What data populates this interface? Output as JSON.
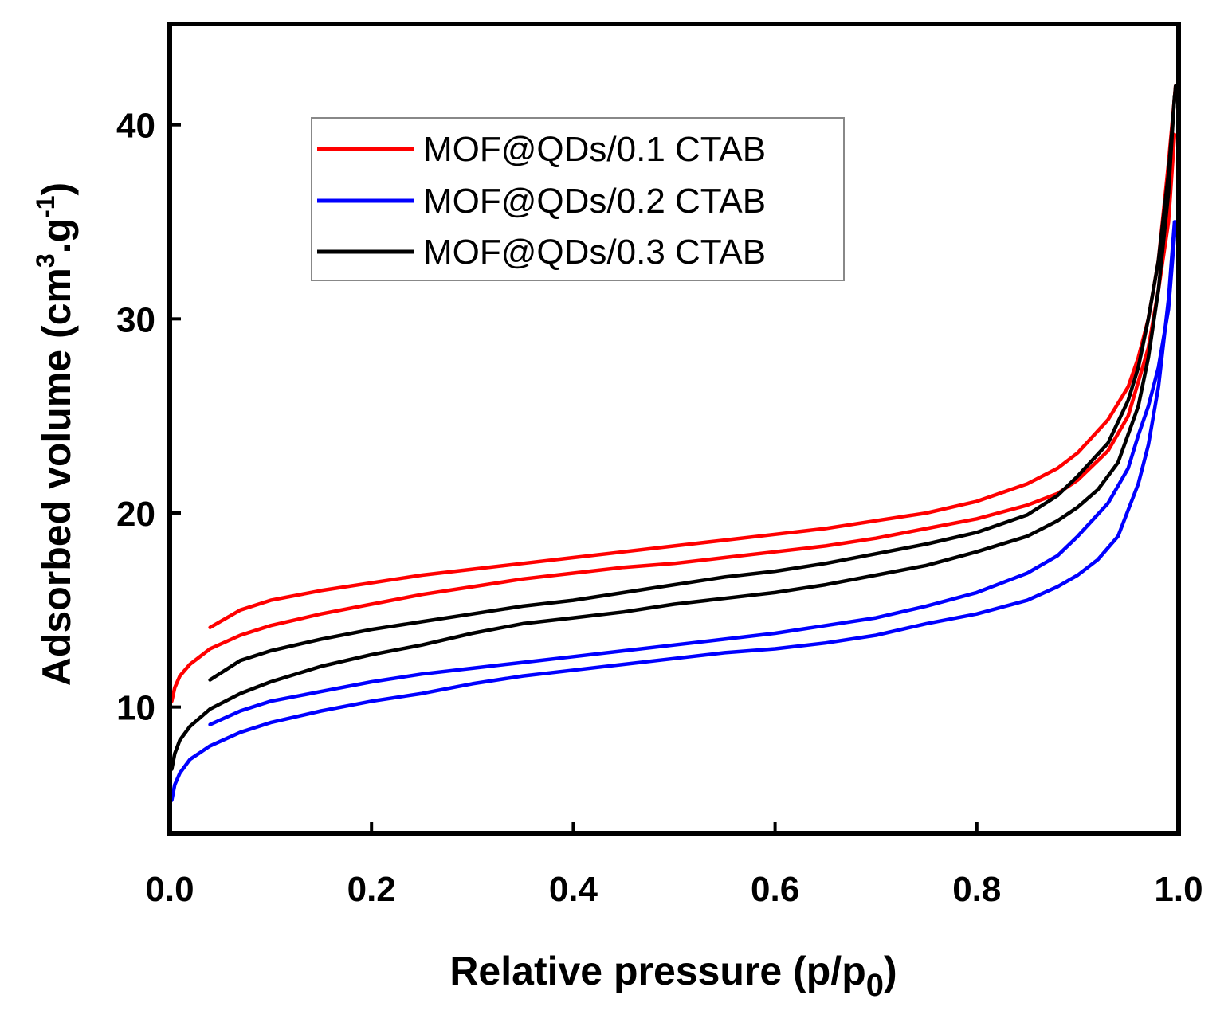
{
  "chart_data": {
    "type": "line",
    "title": "",
    "xlabel": {
      "main": "Relative pressure (p/p",
      "sub": "0",
      "close": ")"
    },
    "ylabel": {
      "main": "Adsorbed volume (cm",
      "sup1": "3",
      "mid": ".g",
      "sup2": "-1",
      "close": ")"
    },
    "xlim": [
      0,
      1.0
    ],
    "ylim": [
      3.5,
      45.2
    ],
    "xticks": [
      0.0,
      0.2,
      0.4,
      0.6,
      0.8,
      1.0
    ],
    "xtick_labels": [
      "0.0",
      "0.2",
      "0.4",
      "0.6",
      "0.8",
      "1.0"
    ],
    "yticks": [
      10,
      20,
      30,
      40
    ],
    "ytick_labels": [
      "10",
      "20",
      "30",
      "40"
    ],
    "grid": false,
    "legend_position": "top-left",
    "series": [
      {
        "name": "MOF@QDs/0.1 CTAB",
        "color": "#ff0000",
        "adsorption": [
          [
            0.002,
            10.3
          ],
          [
            0.005,
            11.0
          ],
          [
            0.01,
            11.6
          ],
          [
            0.02,
            12.2
          ],
          [
            0.04,
            13.0
          ],
          [
            0.07,
            13.7
          ],
          [
            0.1,
            14.2
          ],
          [
            0.15,
            14.8
          ],
          [
            0.2,
            15.3
          ],
          [
            0.25,
            15.8
          ],
          [
            0.3,
            16.2
          ],
          [
            0.35,
            16.6
          ],
          [
            0.4,
            16.9
          ],
          [
            0.45,
            17.2
          ],
          [
            0.5,
            17.4
          ],
          [
            0.55,
            17.7
          ],
          [
            0.6,
            18.0
          ],
          [
            0.65,
            18.3
          ],
          [
            0.7,
            18.7
          ],
          [
            0.75,
            19.2
          ],
          [
            0.8,
            19.7
          ],
          [
            0.85,
            20.4
          ],
          [
            0.88,
            21.0
          ],
          [
            0.9,
            21.7
          ],
          [
            0.93,
            23.2
          ],
          [
            0.95,
            25.0
          ],
          [
            0.97,
            28.5
          ],
          [
            0.98,
            31.5
          ],
          [
            0.99,
            35.0
          ],
          [
            0.996,
            39.5
          ]
        ],
        "desorption": [
          [
            0.997,
            42.0
          ],
          [
            0.99,
            38.0
          ],
          [
            0.98,
            33.0
          ],
          [
            0.97,
            30.0
          ],
          [
            0.96,
            28.0
          ],
          [
            0.95,
            26.5
          ],
          [
            0.93,
            24.8
          ],
          [
            0.9,
            23.1
          ],
          [
            0.88,
            22.3
          ],
          [
            0.85,
            21.5
          ],
          [
            0.8,
            20.6
          ],
          [
            0.75,
            20.0
          ],
          [
            0.7,
            19.6
          ],
          [
            0.65,
            19.2
          ],
          [
            0.6,
            18.9
          ],
          [
            0.55,
            18.6
          ],
          [
            0.5,
            18.3
          ],
          [
            0.45,
            18.0
          ],
          [
            0.4,
            17.7
          ],
          [
            0.35,
            17.4
          ],
          [
            0.3,
            17.1
          ],
          [
            0.25,
            16.8
          ],
          [
            0.2,
            16.4
          ],
          [
            0.15,
            16.0
          ],
          [
            0.1,
            15.5
          ],
          [
            0.07,
            15.0
          ],
          [
            0.04,
            14.1
          ]
        ]
      },
      {
        "name": "MOF@QDs/0.2 CTAB",
        "color": "#0000ff",
        "adsorption": [
          [
            0.002,
            5.2
          ],
          [
            0.005,
            6.0
          ],
          [
            0.01,
            6.6
          ],
          [
            0.02,
            7.3
          ],
          [
            0.04,
            8.0
          ],
          [
            0.07,
            8.7
          ],
          [
            0.1,
            9.2
          ],
          [
            0.15,
            9.8
          ],
          [
            0.2,
            10.3
          ],
          [
            0.25,
            10.7
          ],
          [
            0.3,
            11.2
          ],
          [
            0.35,
            11.6
          ],
          [
            0.4,
            11.9
          ],
          [
            0.45,
            12.2
          ],
          [
            0.5,
            12.5
          ],
          [
            0.55,
            12.8
          ],
          [
            0.6,
            13.0
          ],
          [
            0.65,
            13.3
          ],
          [
            0.7,
            13.7
          ],
          [
            0.75,
            14.3
          ],
          [
            0.8,
            14.8
          ],
          [
            0.85,
            15.5
          ],
          [
            0.88,
            16.2
          ],
          [
            0.9,
            16.8
          ],
          [
            0.92,
            17.6
          ],
          [
            0.94,
            18.8
          ],
          [
            0.96,
            21.5
          ],
          [
            0.97,
            23.5
          ],
          [
            0.98,
            26.5
          ],
          [
            0.99,
            31.0
          ],
          [
            0.996,
            35.0
          ]
        ],
        "desorption": [
          [
            0.997,
            35.0
          ],
          [
            0.99,
            30.5
          ],
          [
            0.98,
            27.5
          ],
          [
            0.97,
            25.5
          ],
          [
            0.96,
            24.0
          ],
          [
            0.95,
            22.3
          ],
          [
            0.93,
            20.5
          ],
          [
            0.9,
            18.8
          ],
          [
            0.88,
            17.8
          ],
          [
            0.85,
            16.9
          ],
          [
            0.8,
            15.9
          ],
          [
            0.75,
            15.2
          ],
          [
            0.7,
            14.6
          ],
          [
            0.65,
            14.2
          ],
          [
            0.6,
            13.8
          ],
          [
            0.55,
            13.5
          ],
          [
            0.5,
            13.2
          ],
          [
            0.45,
            12.9
          ],
          [
            0.4,
            12.6
          ],
          [
            0.35,
            12.3
          ],
          [
            0.3,
            12.0
          ],
          [
            0.25,
            11.7
          ],
          [
            0.2,
            11.3
          ],
          [
            0.15,
            10.8
          ],
          [
            0.1,
            10.3
          ],
          [
            0.07,
            9.8
          ],
          [
            0.04,
            9.1
          ]
        ]
      },
      {
        "name": "MOF@QDs/0.3 CTAB",
        "color": "#000000",
        "adsorption": [
          [
            0.002,
            6.8
          ],
          [
            0.005,
            7.6
          ],
          [
            0.01,
            8.3
          ],
          [
            0.02,
            9.0
          ],
          [
            0.04,
            9.9
          ],
          [
            0.07,
            10.7
          ],
          [
            0.1,
            11.3
          ],
          [
            0.15,
            12.1
          ],
          [
            0.2,
            12.7
          ],
          [
            0.25,
            13.2
          ],
          [
            0.3,
            13.8
          ],
          [
            0.35,
            14.3
          ],
          [
            0.4,
            14.6
          ],
          [
            0.45,
            14.9
          ],
          [
            0.5,
            15.3
          ],
          [
            0.55,
            15.6
          ],
          [
            0.6,
            15.9
          ],
          [
            0.65,
            16.3
          ],
          [
            0.7,
            16.8
          ],
          [
            0.75,
            17.3
          ],
          [
            0.8,
            18.0
          ],
          [
            0.85,
            18.8
          ],
          [
            0.88,
            19.6
          ],
          [
            0.9,
            20.3
          ],
          [
            0.92,
            21.2
          ],
          [
            0.94,
            22.6
          ],
          [
            0.96,
            25.5
          ],
          [
            0.97,
            28.0
          ],
          [
            0.98,
            31.5
          ],
          [
            0.99,
            36.5
          ],
          [
            0.996,
            41.5
          ]
        ],
        "desorption": [
          [
            0.997,
            42.0
          ],
          [
            0.99,
            37.5
          ],
          [
            0.98,
            33.0
          ],
          [
            0.97,
            30.0
          ],
          [
            0.96,
            27.5
          ],
          [
            0.95,
            25.8
          ],
          [
            0.93,
            23.6
          ],
          [
            0.9,
            21.9
          ],
          [
            0.88,
            20.9
          ],
          [
            0.85,
            19.9
          ],
          [
            0.8,
            19.0
          ],
          [
            0.75,
            18.4
          ],
          [
            0.7,
            17.9
          ],
          [
            0.65,
            17.4
          ],
          [
            0.6,
            17.0
          ],
          [
            0.55,
            16.7
          ],
          [
            0.5,
            16.3
          ],
          [
            0.45,
            15.9
          ],
          [
            0.4,
            15.5
          ],
          [
            0.35,
            15.2
          ],
          [
            0.3,
            14.8
          ],
          [
            0.25,
            14.4
          ],
          [
            0.2,
            14.0
          ],
          [
            0.15,
            13.5
          ],
          [
            0.1,
            12.9
          ],
          [
            0.07,
            12.4
          ],
          [
            0.04,
            11.4
          ]
        ]
      }
    ]
  }
}
